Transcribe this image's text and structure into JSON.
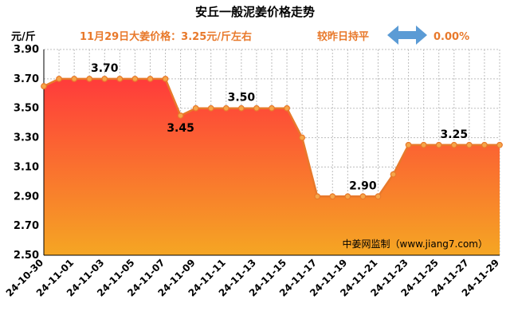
{
  "chart_data": {
    "type": "area",
    "title": "安丘一般泥姜价格走势",
    "ylabel": "元/斤",
    "headline": "11月29日大姜价格：3.25元/斤左右",
    "change_label": "较昨日持平",
    "change_value": "0.00%",
    "watermark": "中姜网监制（www.jiang7.com）",
    "ylim": [
      2.5,
      3.9
    ],
    "yticks": [
      "2.50",
      "2.70",
      "2.90",
      "3.10",
      "3.30",
      "3.50",
      "3.70",
      "3.90"
    ],
    "grid": true,
    "x": [
      "24-10-30",
      "24-10-31",
      "24-11-01",
      "24-11-02",
      "24-11-03",
      "24-11-04",
      "24-11-05",
      "24-11-06",
      "24-11-07",
      "24-11-08",
      "24-11-09",
      "24-11-10",
      "24-11-11",
      "24-11-12",
      "24-11-13",
      "24-11-14",
      "24-11-15",
      "24-11-16",
      "24-11-17",
      "24-11-18",
      "24-11-19",
      "24-11-20",
      "24-11-21",
      "24-11-22",
      "24-11-23",
      "24-11-24",
      "24-11-25",
      "24-11-26",
      "24-11-27",
      "24-11-28",
      "24-11-29"
    ],
    "x_tick_labels": [
      "24-10-30",
      "24-11-01",
      "24-11-03",
      "24-11-05",
      "24-11-07",
      "24-11-09",
      "24-11-11",
      "24-11-13",
      "24-11-15",
      "24-11-17",
      "24-11-19",
      "24-11-21",
      "24-11-23",
      "24-11-25",
      "24-11-27",
      "24-11-29"
    ],
    "values": [
      3.65,
      3.7,
      3.7,
      3.7,
      3.7,
      3.7,
      3.7,
      3.7,
      3.7,
      3.45,
      3.5,
      3.5,
      3.5,
      3.5,
      3.5,
      3.5,
      3.5,
      3.3,
      2.9,
      2.9,
      2.9,
      2.9,
      2.9,
      3.05,
      3.25,
      3.25,
      3.25,
      3.25,
      3.25,
      3.25,
      3.25
    ],
    "data_labels": [
      {
        "index": 4,
        "text": "3.70"
      },
      {
        "index": 9,
        "text": "3.45"
      },
      {
        "index": 13,
        "text": "3.50"
      },
      {
        "index": 21,
        "text": "2.90"
      },
      {
        "index": 27,
        "text": "3.25"
      }
    ],
    "colors": {
      "line": "#e8792b",
      "fill_top": "#ff3b3b",
      "fill_bottom": "#f5a623",
      "marker": "#f5a64a",
      "arrow": "#5b9bd5"
    }
  }
}
